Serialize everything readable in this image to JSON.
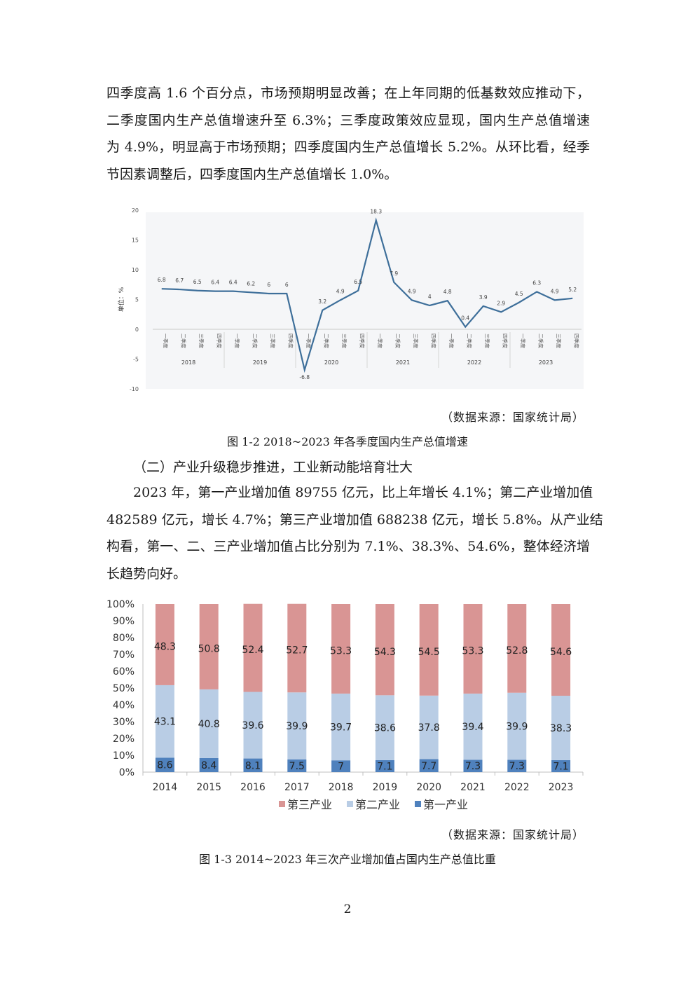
{
  "paragraph1": {
    "lines": [
      "四季度高 1.6 个百分点，市场预期明显改善；在上年同期的低基数效应推动下，",
      "二季度国内生产总值增速升至 6.3%；三季度政策效应显现，国内生产总值增速",
      "为 4.9%，明显高于市场预期；四季度国内生产总值增长 5.2%。从环比看，经季",
      "节因素调整后，四季度国内生产总值增长 1.0%。"
    ]
  },
  "figure1": {
    "source": "（数据来源：国家统计局）",
    "caption": "图 1-2 2018~2023 年各季度国内生产总值增速"
  },
  "section_heading": "（二）产业升级稳步推进，工业新动能培育壮大",
  "paragraph2": {
    "lines": [
      "2023 年，第一产业增加值 89755 亿元，比上年增长 4.1%；第二产业增加值",
      "482589 亿元，增长 4.7%；第三产业增加值 688238 亿元，增长 5.8%。从产业结",
      "构看，第一、二、三产业增加值占比分别为 7.1%、38.3%、54.6%，整体经济增",
      "长趋势向好。"
    ]
  },
  "figure2": {
    "source": "（数据来源：国家统计局）",
    "caption": "图 1-3 2014~2023 年三次产业增加值占国内生产总值比重"
  },
  "page_number": "2",
  "colors": {
    "line": "#3e6f9a",
    "tertiary": "#d99594",
    "secondary": "#b9cde5",
    "primary": "#4f81bd"
  },
  "chart_data": [
    {
      "type": "line",
      "ylabel": "单位：%",
      "ylim": [
        -10,
        20
      ],
      "yticks": [
        "20",
        "15",
        "10",
        "5",
        "0",
        "-5",
        "-10"
      ],
      "quarter_labels": [
        "一季度",
        "二季度",
        "三季度",
        "四季度",
        "一季度",
        "二季度",
        "三季度",
        "四季度",
        "一季度",
        "二季度",
        "三季度",
        "四季度",
        "一季度",
        "二季度",
        "三季度",
        "四季度",
        "一季度",
        "二季度",
        "三季度",
        "四季度",
        "一季度",
        "二季度",
        "三季度",
        "四季度"
      ],
      "years": [
        "2018",
        "2019",
        "2020",
        "2021",
        "2022",
        "2023"
      ],
      "values": [
        6.8,
        6.7,
        6.5,
        6.4,
        6.4,
        6.2,
        6,
        6,
        -6.8,
        3.2,
        4.9,
        6.5,
        18.3,
        7.9,
        4.9,
        4,
        4.8,
        0.4,
        3.9,
        2.9,
        4.5,
        6.3,
        4.9,
        5.2
      ],
      "labels": [
        "6.8",
        "6.7",
        "6.5",
        "6.4",
        "6.4",
        "6.2",
        "6",
        "6",
        "-6.8",
        "3.2",
        "4.9",
        "6.5",
        "18.3",
        "7.9",
        "4.9",
        "4",
        "4.8",
        "0.4",
        "3.9",
        "2.9",
        "4.5",
        "6.3",
        "4.9",
        "5.2"
      ],
      "grid": false
    },
    {
      "type": "bar",
      "stacked": true,
      "categories": [
        "2014",
        "2015",
        "2016",
        "2017",
        "2018",
        "2019",
        "2020",
        "2021",
        "2022",
        "2023"
      ],
      "yticks": [
        "100%",
        "90%",
        "80%",
        "70%",
        "60%",
        "50%",
        "40%",
        "30%",
        "20%",
        "10%",
        "0%"
      ],
      "ylim": [
        0,
        100
      ],
      "series": [
        {
          "name": "第一产业",
          "values": [
            8.6,
            8.4,
            8.1,
            7.5,
            7,
            7.1,
            7.7,
            7.3,
            7.3,
            7.1
          ],
          "labels": [
            "8.6",
            "8.4",
            "8.1",
            "7.5",
            "7",
            "7.1",
            "7.7",
            "7.3",
            "7.3",
            "7.1"
          ]
        },
        {
          "name": "第二产业",
          "values": [
            43.1,
            40.8,
            39.6,
            39.9,
            39.7,
            38.6,
            37.8,
            39.4,
            39.9,
            38.3
          ],
          "labels": [
            "43.1",
            "40.8",
            "39.6",
            "39.9",
            "39.7",
            "38.6",
            "37.8",
            "39.4",
            "39.9",
            "38.3"
          ]
        },
        {
          "name": "第三产业",
          "values": [
            48.3,
            50.8,
            52.4,
            52.7,
            53.3,
            54.3,
            54.5,
            53.3,
            52.8,
            54.6
          ],
          "labels": [
            "48.3",
            "50.8",
            "52.4",
            "52.7",
            "53.3",
            "54.3",
            "54.5",
            "53.3",
            "52.8",
            "54.6"
          ]
        }
      ],
      "legend": [
        "第三产业",
        "第二产业",
        "第一产业"
      ],
      "legend_position": "bottom"
    }
  ]
}
